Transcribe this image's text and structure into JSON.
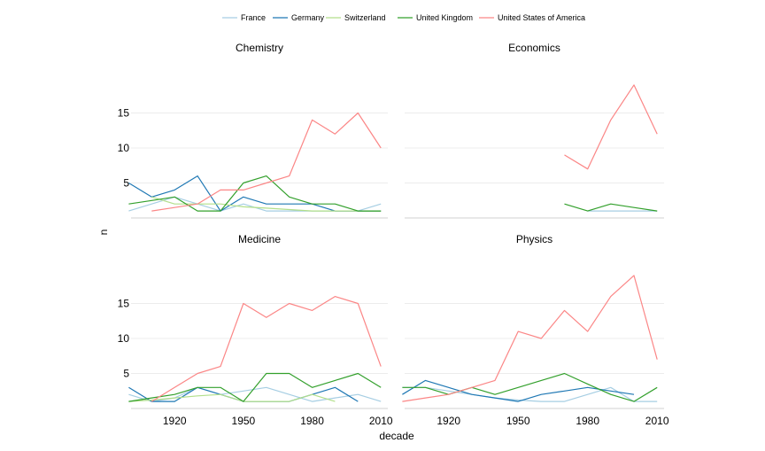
{
  "chart_data": {
    "type": "line",
    "layout": "facet-grid-2x2",
    "xlabel": "decade",
    "ylabel": "n",
    "x_ticks": [
      1920,
      1950,
      1980,
      2010
    ],
    "y_ticks": [
      5,
      10,
      15
    ],
    "xlim": [
      1901,
      2013
    ],
    "ylim": [
      0,
      20
    ],
    "grid": true,
    "legend_position": "top",
    "colors": {
      "France": "#a6cee3",
      "Germany": "#1f78b4",
      "Switzerland": "#b2df8a",
      "United Kingdom": "#33a02c",
      "United States of America": "#fb8686"
    },
    "legend": [
      "France",
      "Germany",
      "Switzerland",
      "United Kingdom",
      "United States of America"
    ],
    "panels": [
      {
        "title": "Chemistry",
        "series": [
          {
            "name": "France",
            "x": [
              1900,
              1910,
              1920,
              1930,
              1940,
              1950,
              1960,
              1970,
              1980,
              1990,
              2000,
              2010
            ],
            "y": [
              1,
              2,
              3,
              2,
              1,
              2,
              1,
              1,
              1,
              1,
              1,
              2
            ]
          },
          {
            "name": "Germany",
            "x": [
              1900,
              1910,
              1920,
              1930,
              1940,
              1950,
              1960,
              1970,
              1980,
              1990,
              2000,
              2010
            ],
            "y": [
              5,
              3,
              4,
              6,
              1,
              3,
              2,
              2,
              2,
              1,
              1,
              1
            ]
          },
          {
            "name": "Switzerland",
            "x": [
              1910,
              1920,
              1930,
              1940,
              1950,
              1960,
              1970,
              1980,
              1990,
              2000,
              2010
            ],
            "y": [
              3,
              2,
              2,
              2,
              1.6,
              1.4,
              1.2,
              1,
              1,
              1,
              1
            ]
          },
          {
            "name": "United Kingdom",
            "x": [
              1900,
              1910,
              1920,
              1930,
              1940,
              1950,
              1960,
              1970,
              1980,
              1990,
              2000,
              2010
            ],
            "y": [
              2,
              2.5,
              3,
              1,
              1,
              5,
              6,
              3,
              2,
              2,
              1,
              1
            ]
          },
          {
            "name": "United States of America",
            "x": [
              1910,
              1920,
              1930,
              1940,
              1950,
              1960,
              1970,
              1980,
              1990,
              2000,
              2010
            ],
            "y": [
              1,
              1.5,
              2,
              4,
              4,
              5,
              6,
              14,
              12,
              15,
              10
            ]
          }
        ]
      },
      {
        "title": "Economics",
        "series": [
          {
            "name": "France",
            "x": [
              1980,
              1990,
              2000,
              2010
            ],
            "y": [
              1,
              1,
              1,
              1
            ]
          },
          {
            "name": "United Kingdom",
            "x": [
              1970,
              1980,
              1990,
              2000,
              2010
            ],
            "y": [
              2,
              1,
              2,
              1.5,
              1
            ]
          },
          {
            "name": "United States of America",
            "x": [
              1970,
              1980,
              1990,
              2000,
              2010
            ],
            "y": [
              9,
              7,
              14,
              19,
              12
            ]
          }
        ]
      },
      {
        "title": "Medicine",
        "series": [
          {
            "name": "France",
            "x": [
              1900,
              1910,
              1920,
              1930,
              1940,
              1950,
              1960,
              1970,
              1980,
              1990,
              2000,
              2010
            ],
            "y": [
              2,
              1,
              1.5,
              3,
              2,
              2.5,
              3,
              2,
              1,
              1.5,
              2,
              1
            ]
          },
          {
            "name": "Germany",
            "x": [
              1900,
              1910,
              1920,
              1930,
              1940,
              1950,
              1960,
              1970,
              1980,
              1990,
              2000
            ],
            "y": [
              3,
              1,
              1,
              3,
              2,
              1,
              1,
              1,
              2,
              3,
              1
            ]
          },
          {
            "name": "Switzerland",
            "x": [
              1900,
              1910,
              1920,
              1930,
              1940,
              1950,
              1960,
              1970,
              1980,
              1990
            ],
            "y": [
              1,
              1.2,
              1.5,
              1.8,
              2,
              1,
              1,
              1,
              2,
              1
            ]
          },
          {
            "name": "United Kingdom",
            "x": [
              1900,
              1910,
              1920,
              1930,
              1940,
              1950,
              1960,
              1970,
              1980,
              1990,
              2000,
              2010
            ],
            "y": [
              1,
              1.5,
              2,
              3,
              3,
              1,
              5,
              5,
              3,
              4,
              5,
              3
            ]
          },
          {
            "name": "United States of America",
            "x": [
              1910,
              1920,
              1930,
              1940,
              1950,
              1960,
              1970,
              1980,
              1990,
              2000,
              2010
            ],
            "y": [
              1,
              3,
              5,
              6,
              15,
              13,
              15,
              14,
              16,
              15,
              6
            ]
          }
        ]
      },
      {
        "title": "Physics",
        "series": [
          {
            "name": "France",
            "x": [
              1900,
              1910,
              1920,
              1930,
              1940,
              1950,
              1960,
              1970,
              1980,
              1990,
              2000,
              2010
            ],
            "y": [
              3,
              3,
              2.5,
              2,
              1.5,
              1.2,
              1,
              1,
              2,
              3,
              1,
              1
            ]
          },
          {
            "name": "Germany",
            "x": [
              1900,
              1910,
              1920,
              1930,
              1940,
              1950,
              1960,
              1970,
              1980,
              1990,
              2000
            ],
            "y": [
              2,
              4,
              3,
              2,
              1.5,
              1,
              2,
              2.5,
              3,
              2.5,
              2
            ]
          },
          {
            "name": "United Kingdom",
            "x": [
              1900,
              1910,
              1920,
              1930,
              1940,
              1950,
              1960,
              1970,
              1980,
              1990,
              2000,
              2010
            ],
            "y": [
              3,
              3,
              2,
              3,
              2,
              3,
              4,
              5,
              3.5,
              2,
              1,
              3
            ]
          },
          {
            "name": "United States of America",
            "x": [
              1900,
              1910,
              1920,
              1930,
              1940,
              1950,
              1960,
              1970,
              1980,
              1990,
              2000,
              2010
            ],
            "y": [
              1,
              1.5,
              2,
              3,
              4,
              11,
              10,
              14,
              11,
              16,
              19,
              7
            ]
          }
        ]
      }
    ]
  }
}
